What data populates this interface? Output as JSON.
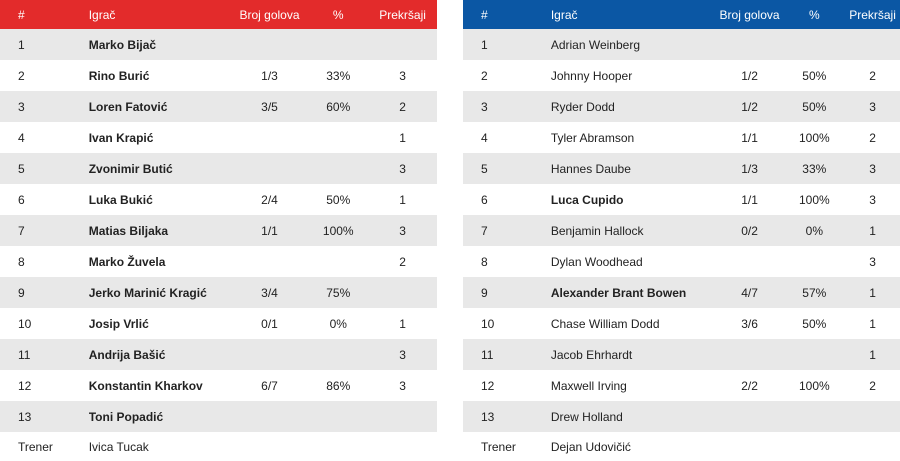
{
  "headers": {
    "num": "#",
    "player": "Igrač",
    "goals": "Broj golova",
    "pct": "%",
    "fouls": "Prekršaji"
  },
  "colors": {
    "home": "#e32b2b",
    "away": "#0b57a4",
    "stripe": "#e8e8e8"
  },
  "home": {
    "players": [
      {
        "num": "1",
        "name": "Marko Bijač",
        "goals": "",
        "pct": "",
        "fouls": ""
      },
      {
        "num": "2",
        "name": "Rino Burić",
        "goals": "1/3",
        "pct": "33%",
        "fouls": "3"
      },
      {
        "num": "3",
        "name": "Loren Fatović",
        "goals": "3/5",
        "pct": "60%",
        "fouls": "2"
      },
      {
        "num": "4",
        "name": "Ivan Krapić",
        "goals": "",
        "pct": "",
        "fouls": "1"
      },
      {
        "num": "5",
        "name": "Zvonimir Butić",
        "goals": "",
        "pct": "",
        "fouls": "3"
      },
      {
        "num": "6",
        "name": "Luka Bukić",
        "goals": "2/4",
        "pct": "50%",
        "fouls": "1"
      },
      {
        "num": "7",
        "name": "Matias Biljaka",
        "goals": "1/1",
        "pct": "100%",
        "fouls": "3"
      },
      {
        "num": "8",
        "name": "Marko Žuvela",
        "goals": "",
        "pct": "",
        "fouls": "2"
      },
      {
        "num": "9",
        "name": "Jerko Marinić Kragić",
        "goals": "3/4",
        "pct": "75%",
        "fouls": ""
      },
      {
        "num": "10",
        "name": "Josip Vrlić",
        "goals": "0/1",
        "pct": "0%",
        "fouls": "1"
      },
      {
        "num": "11",
        "name": "Andrija Bašić",
        "goals": "",
        "pct": "",
        "fouls": "3"
      },
      {
        "num": "12",
        "name": "Konstantin Kharkov",
        "goals": "6/7",
        "pct": "86%",
        "fouls": "3"
      },
      {
        "num": "13",
        "name": "Toni Popadić",
        "goals": "",
        "pct": "",
        "fouls": ""
      }
    ],
    "coach_label": "Trener",
    "coach_name": "Ivica Tucak"
  },
  "away": {
    "players": [
      {
        "num": "1",
        "name": "Adrian Weinberg",
        "goals": "",
        "pct": "",
        "fouls": "",
        "bold": false
      },
      {
        "num": "2",
        "name": "Johnny Hooper",
        "goals": "1/2",
        "pct": "50%",
        "fouls": "2",
        "bold": false
      },
      {
        "num": "3",
        "name": "Ryder Dodd",
        "goals": "1/2",
        "pct": "50%",
        "fouls": "3",
        "bold": false
      },
      {
        "num": "4",
        "name": "Tyler Abramson",
        "goals": "1/1",
        "pct": "100%",
        "fouls": "2",
        "bold": false
      },
      {
        "num": "5",
        "name": "Hannes Daube",
        "goals": "1/3",
        "pct": "33%",
        "fouls": "3",
        "bold": false
      },
      {
        "num": "6",
        "name": "Luca Cupido",
        "goals": "1/1",
        "pct": "100%",
        "fouls": "3",
        "bold": true
      },
      {
        "num": "7",
        "name": "Benjamin Hallock",
        "goals": "0/2",
        "pct": "0%",
        "fouls": "1",
        "bold": false
      },
      {
        "num": "8",
        "name": "Dylan Woodhead",
        "goals": "",
        "pct": "",
        "fouls": "3",
        "bold": false
      },
      {
        "num": "9",
        "name": "Alexander Brant Bowen",
        "goals": "4/7",
        "pct": "57%",
        "fouls": "1",
        "bold": true
      },
      {
        "num": "10",
        "name": "Chase William Dodd",
        "goals": "3/6",
        "pct": "50%",
        "fouls": "1",
        "bold": false
      },
      {
        "num": "11",
        "name": "Jacob Ehrhardt",
        "goals": "",
        "pct": "",
        "fouls": "1",
        "bold": false
      },
      {
        "num": "12",
        "name": "Maxwell Irving",
        "goals": "2/2",
        "pct": "100%",
        "fouls": "2",
        "bold": false
      },
      {
        "num": "13",
        "name": "Drew Holland",
        "goals": "",
        "pct": "",
        "fouls": "",
        "bold": false
      }
    ],
    "coach_label": "Trener",
    "coach_name": "Dejan Udovičić"
  }
}
